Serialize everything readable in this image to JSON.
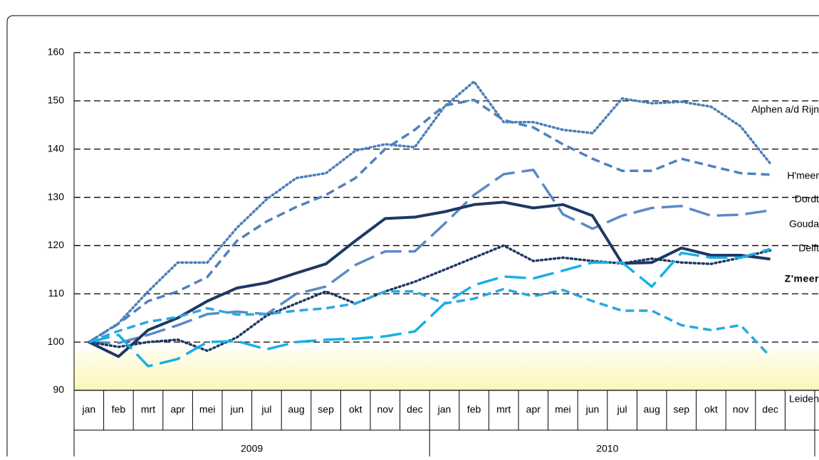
{
  "chart_data": {
    "type": "line",
    "categories": [
      "jan",
      "feb",
      "mrt",
      "apr",
      "mei",
      "jun",
      "jul",
      "aug",
      "sep",
      "okt",
      "nov",
      "dec",
      "jan",
      "feb",
      "mrt",
      "apr",
      "mei",
      "jun",
      "jul",
      "aug",
      "sep",
      "okt",
      "nov",
      "dec",
      null
    ],
    "year_labels": [
      "2009",
      "2010"
    ],
    "ylim": [
      90,
      160
    ],
    "yticks": [
      90,
      100,
      110,
      120,
      130,
      140,
      150,
      160
    ],
    "grid": true,
    "series": [
      {
        "name": "Alphen a/d Rijn",
        "color": "#4a7ebb",
        "line_style": "dotted",
        "bold": false,
        "values": [
          100,
          103.9,
          110.5,
          116.5,
          116.5,
          123.7,
          129.6,
          134,
          135,
          139.7,
          141,
          140.4,
          148.8,
          154,
          145.6,
          145.6,
          144,
          143.3,
          150.5,
          149.5,
          149.8,
          148.8,
          144.7,
          137,
          null
        ]
      },
      {
        "name": "H'meer",
        "color": "#4f81bd",
        "line_style": "dashed",
        "bold": false,
        "values": [
          100,
          103.8,
          108.5,
          110.5,
          113.5,
          121,
          125,
          128,
          130.5,
          134,
          140,
          144,
          149,
          150.2,
          146,
          144.5,
          141,
          138,
          135.5,
          135.5,
          138,
          136.5,
          135,
          134.7,
          null
        ]
      },
      {
        "name": "Dordt",
        "color": "#5a8ac6",
        "line_style": "long-dashed",
        "bold": false,
        "values": [
          100,
          99.8,
          101.5,
          103.5,
          105.8,
          106.3,
          105.8,
          110,
          111.5,
          116,
          118.8,
          118.8,
          124.5,
          130.5,
          134.8,
          135.7,
          126.5,
          123.5,
          126.2,
          127.8,
          128.2,
          126.2,
          126.4,
          127.3,
          null
        ]
      },
      {
        "name": "Gouda",
        "color": "#1f3864",
        "line_style": "solid",
        "bold": false,
        "values": [
          100,
          97,
          102.5,
          105,
          108.5,
          111.2,
          112.3,
          114.3,
          116.2,
          121,
          125.6,
          125.9,
          127,
          128.5,
          129,
          127.8,
          128.5,
          126.2,
          116.3,
          116.5,
          119.5,
          118,
          118,
          117.2,
          null
        ]
      },
      {
        "name": "Delft",
        "color": "#1f3864",
        "line_style": "dotted",
        "bold": false,
        "values": [
          100,
          99,
          100,
          100.5,
          98.2,
          101,
          105.5,
          108,
          110.5,
          108,
          110.5,
          112.5,
          115,
          117.5,
          120,
          116.8,
          117.5,
          116.8,
          116.3,
          117.3,
          116.5,
          116.2,
          117.5,
          119,
          null
        ]
      },
      {
        "name": "Z'meer",
        "color": "#17b0e6",
        "line_style": "long-dashed",
        "bold": true,
        "values": [
          100,
          101.5,
          95,
          96.5,
          100,
          100.2,
          98.5,
          100,
          100.5,
          100.7,
          101.2,
          102.2,
          108,
          111.8,
          113.6,
          113.2,
          114.8,
          116.5,
          116.5,
          111.5,
          118.5,
          117.5,
          117.5,
          119.3,
          null
        ]
      },
      {
        "name": "Leiden",
        "color": "#29a8e0",
        "line_style": "dashed",
        "bold": false,
        "values": [
          100,
          102.3,
          104.2,
          105.2,
          107,
          105.7,
          105.8,
          106.5,
          107,
          108,
          110.5,
          110.5,
          108,
          109,
          111,
          109.5,
          110.8,
          108.5,
          106.5,
          106.5,
          103.5,
          102.5,
          103.5,
          97,
          null
        ]
      }
    ]
  }
}
